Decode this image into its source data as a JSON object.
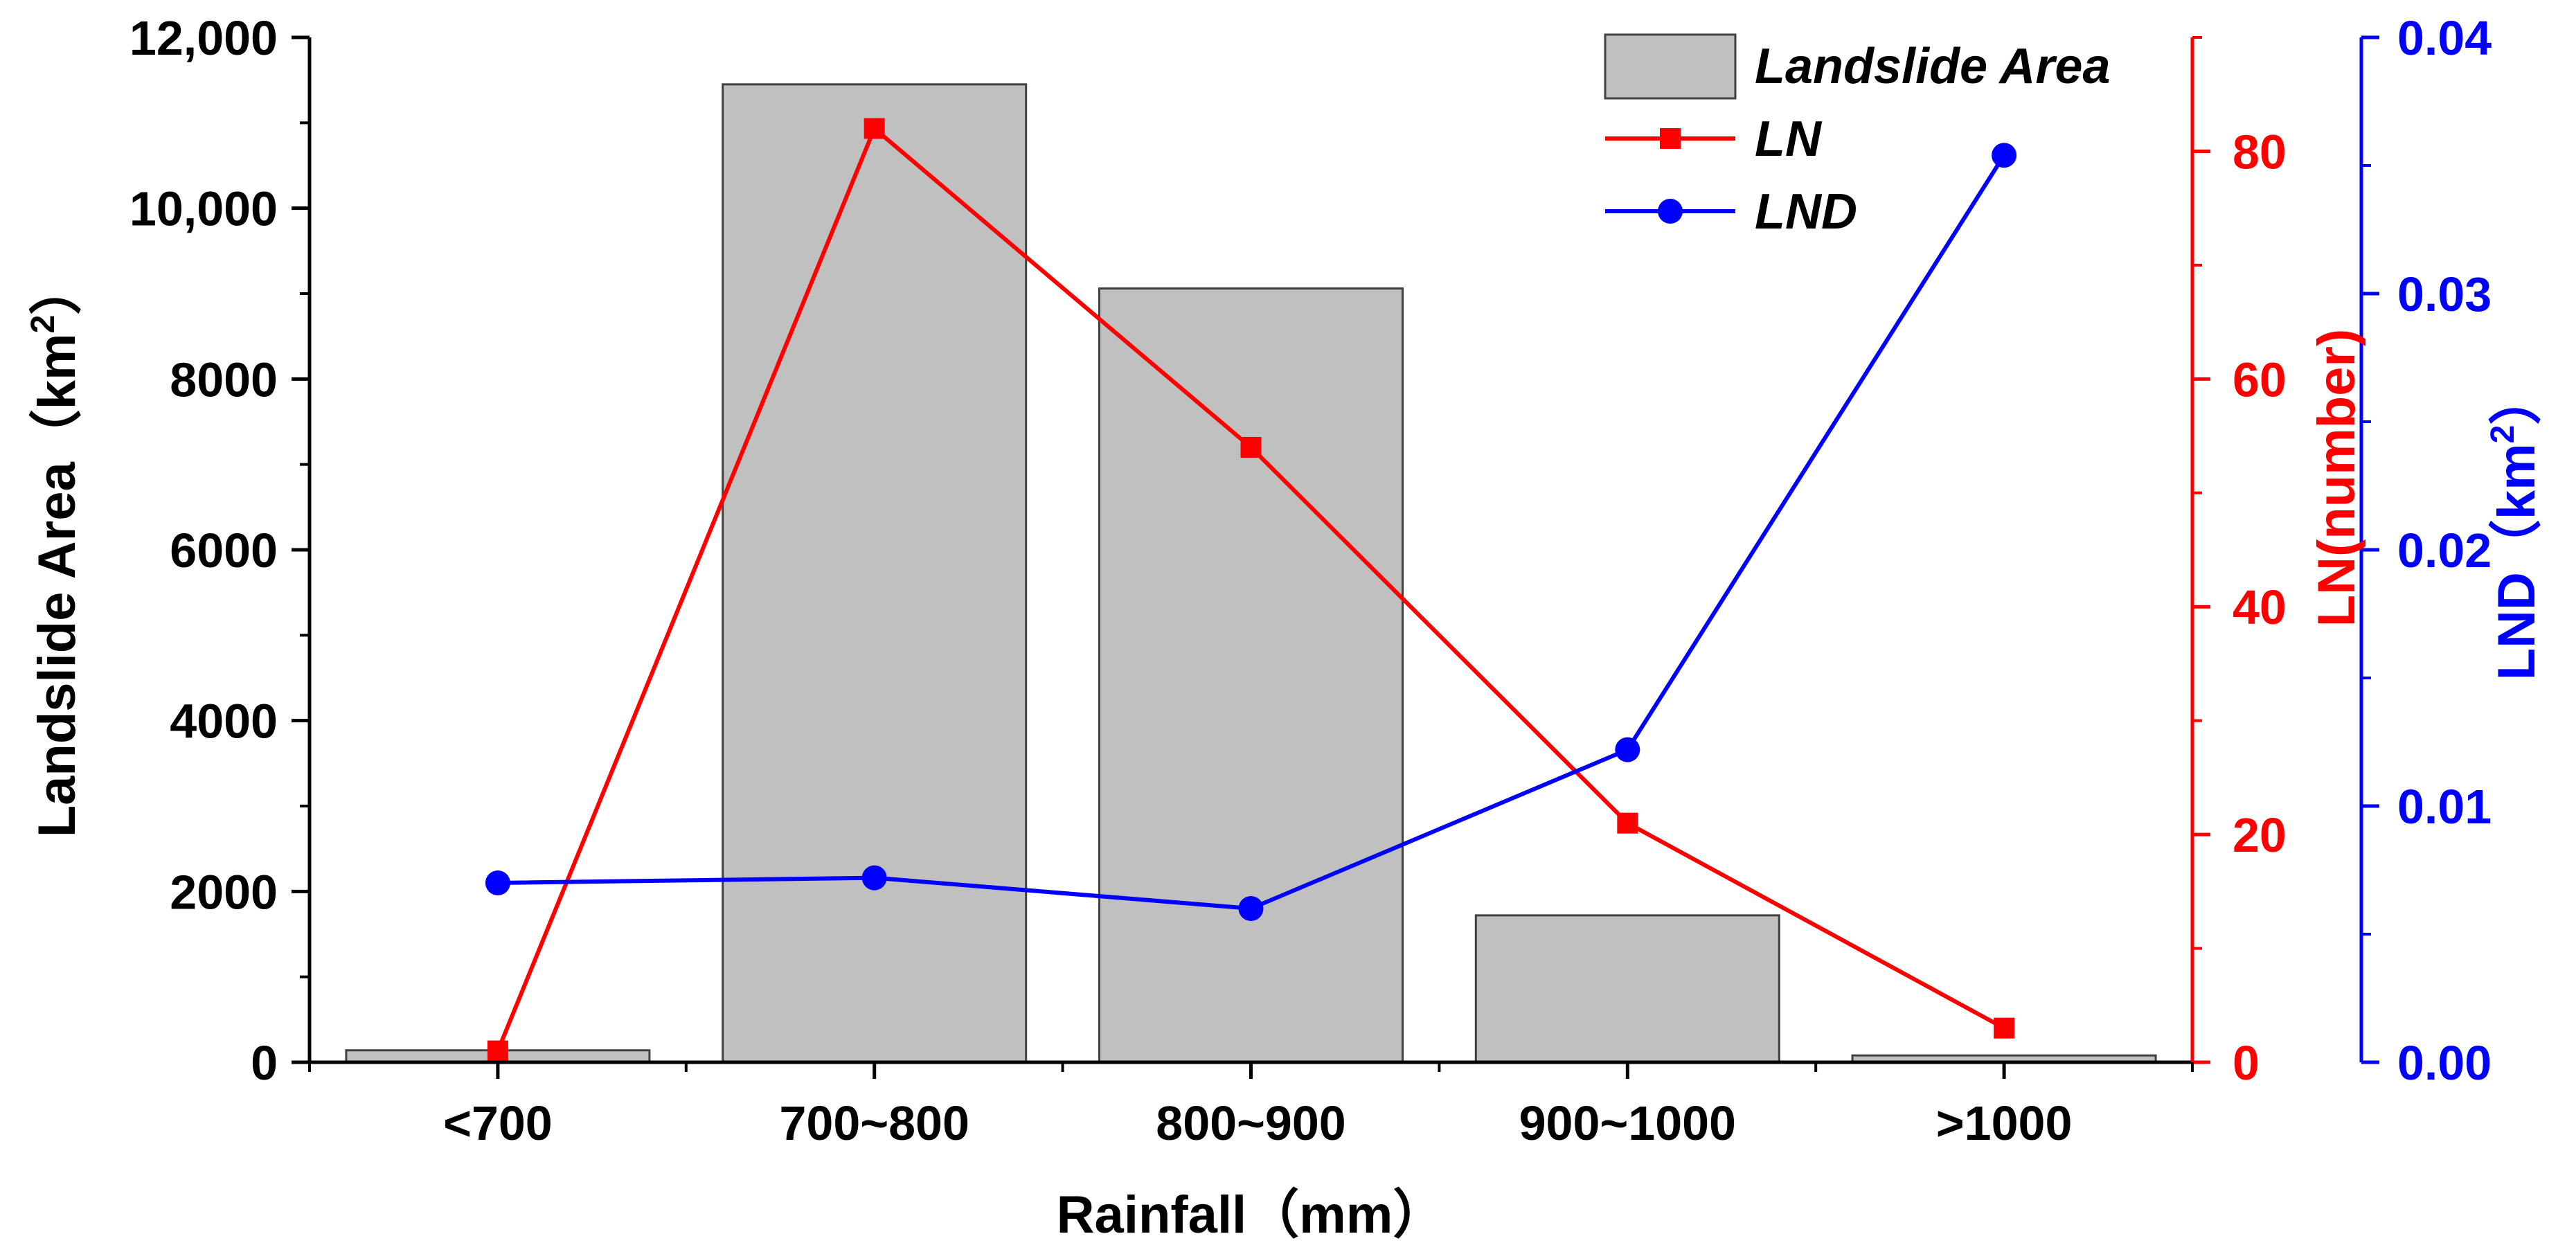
{
  "chart_data": {
    "type": "bar+line",
    "categories": [
      "<700",
      "700~800",
      "800~900",
      "900~1000",
      ">1000"
    ],
    "xlabel": "Rainfall（mm）",
    "axes": {
      "left": {
        "label_prefix": "Landslide Area（km",
        "label_sup": "2",
        "label_suffix": "）",
        "range": [
          0,
          12000
        ],
        "ticks": [
          0,
          2000,
          4000,
          6000,
          8000,
          10000,
          12000
        ],
        "tick_labels": [
          "0",
          "2000",
          "4000",
          "6000",
          "8000",
          "10,000",
          "12,000"
        ],
        "color": "#000000"
      },
      "right1": {
        "label": "LN(number)",
        "range": [
          0,
          90
        ],
        "ticks": [
          0,
          20,
          40,
          60,
          80
        ],
        "tick_labels": [
          "0",
          "20",
          "40",
          "60",
          "80"
        ],
        "color": "#ff0000"
      },
      "right2": {
        "label_prefix": "LND（km",
        "label_sup": "2",
        "label_suffix": "）",
        "range": [
          0,
          0.04
        ],
        "ticks": [
          0,
          0.01,
          0.02,
          0.03,
          0.04
        ],
        "tick_labels": [
          "0.00",
          "0.01",
          "0.02",
          "0.03",
          "0.04"
        ],
        "color": "#0000ff"
      }
    },
    "series": [
      {
        "name": "Landslide Area",
        "type": "bar",
        "axis": "left",
        "values": [
          140,
          11450,
          9060,
          1720,
          80
        ],
        "color": "#c0c0c0",
        "stroke": "#404040"
      },
      {
        "name": "LN",
        "type": "line",
        "marker": "square",
        "axis": "right1",
        "values": [
          1,
          82,
          54,
          21,
          3
        ],
        "color": "#ff0000"
      },
      {
        "name": "LND",
        "type": "line",
        "marker": "circle",
        "axis": "right2",
        "values": [
          0.007,
          0.0072,
          0.006,
          0.0122,
          0.0354
        ],
        "color": "#0000ff"
      }
    ],
    "legend": {
      "position": "top-right",
      "entries": [
        "Landslide Area",
        "LN",
        "LND"
      ]
    },
    "grid": false
  }
}
